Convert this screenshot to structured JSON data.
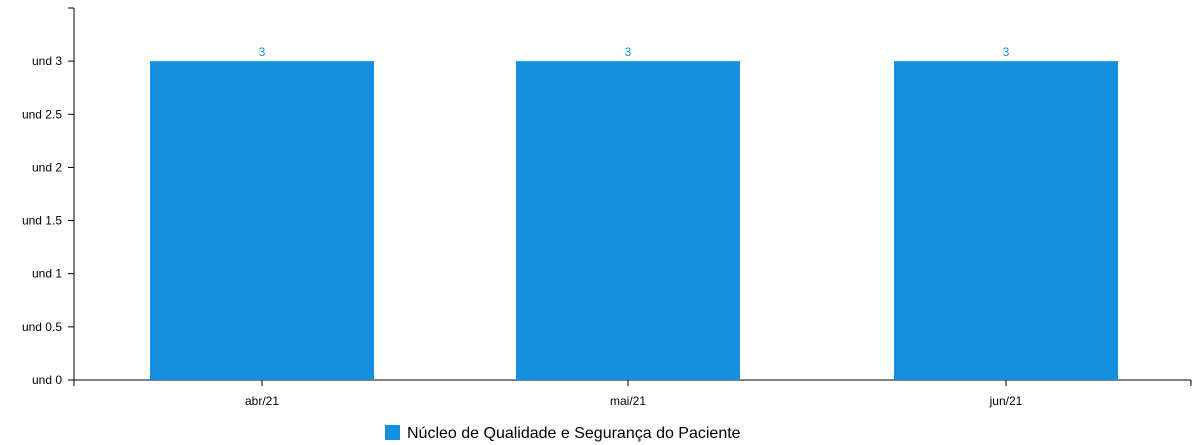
{
  "chart_data": {
    "type": "bar",
    "categories": [
      "abr/21",
      "mai/21",
      "jun/21"
    ],
    "series": [
      {
        "name": "Núcleo de Qualidade e Segurança do Paciente",
        "values": [
          3,
          3,
          3
        ],
        "color": "#1490DE"
      }
    ],
    "data_labels": [
      "3",
      "3",
      "3"
    ],
    "y_ticks": [
      0,
      0.5,
      1,
      1.5,
      2,
      2.5,
      3
    ],
    "y_tick_labels": [
      "und 0",
      "und 0.5",
      "und 1",
      "und 1.5",
      "und 2",
      "und 2.5",
      "und 3"
    ],
    "ylim": [
      0,
      3.5
    ],
    "grid": false,
    "legend_position": "bottom-center",
    "title": "",
    "xlabel": "",
    "ylabel": ""
  }
}
